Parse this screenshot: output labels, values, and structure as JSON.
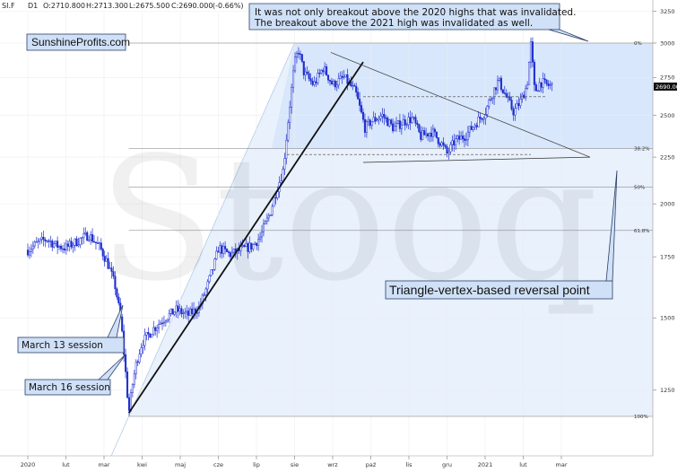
{
  "header": {
    "symbol": "SI.F",
    "interval": "D1",
    "open": "O:2710.800",
    "high": "H:2713.300",
    "low": "L:2675.500",
    "close": "C:2690.000",
    "change": "(-0.66%)"
  },
  "watermark": "Stooq",
  "brand": "SunshineProfits.com",
  "annotations": {
    "top_note_line1": "It was not only breakout above the 2020 highs that was invalidated.",
    "top_note_line2": "The breakout above the 2021 high was invalidated as well.",
    "march13": "March 13 session",
    "march16": "March 16 session",
    "reversal": "Triangle-vertex-based reversal point"
  },
  "current_price_label": "2690.00",
  "fib_levels": [
    {
      "label": "0%",
      "value": 3000
    },
    {
      "label": "38.2%",
      "value": 2300
    },
    {
      "label": "50%",
      "value": 2085
    },
    {
      "label": "61.8%",
      "value": 1870
    },
    {
      "label": "100%",
      "value": 1170
    }
  ],
  "colors": {
    "candle": "#1f2fd0",
    "trend": "#111111",
    "fan_fill": "#d6e8fb",
    "accent": "#2b6fd6"
  },
  "chart_data": {
    "type": "candlestick",
    "title": "",
    "y_scale": "log",
    "ylim": [
      1050,
      3300
    ],
    "y_ticks": [
      1250,
      1500,
      1750,
      2000,
      2250,
      2500,
      2750,
      3000,
      3250
    ],
    "x_ticks": [
      "2020",
      "lut",
      "mar",
      "kwi",
      "maj",
      "cze",
      "lip",
      "sie",
      "wrz",
      "paź",
      "lis",
      "gru",
      "2021",
      "lut",
      "mar"
    ],
    "x_tick_positions": [
      0,
      1,
      2,
      3,
      4,
      5,
      6,
      7,
      8,
      9,
      10,
      11,
      12,
      13,
      14
    ],
    "grid": true,
    "close_path": [
      [
        0.0,
        1780
      ],
      [
        0.25,
        1810
      ],
      [
        0.5,
        1830
      ],
      [
        0.75,
        1800
      ],
      [
        1.0,
        1790
      ],
      [
        1.3,
        1820
      ],
      [
        1.6,
        1850
      ],
      [
        1.9,
        1790
      ],
      [
        2.1,
        1720
      ],
      [
        2.3,
        1620
      ],
      [
        2.45,
        1480
      ],
      [
        2.55,
        1330
      ],
      [
        2.65,
        1180
      ],
      [
        2.75,
        1270
      ],
      [
        2.85,
        1340
      ],
      [
        3.0,
        1410
      ],
      [
        3.3,
        1460
      ],
      [
        3.6,
        1500
      ],
      [
        3.9,
        1530
      ],
      [
        4.2,
        1510
      ],
      [
        4.5,
        1540
      ],
      [
        4.7,
        1620
      ],
      [
        4.9,
        1720
      ],
      [
        5.0,
        1790
      ],
      [
        5.3,
        1760
      ],
      [
        5.6,
        1780
      ],
      [
        5.9,
        1800
      ],
      [
        6.1,
        1840
      ],
      [
        6.35,
        1950
      ],
      [
        6.5,
        2050
      ],
      [
        6.7,
        2180
      ],
      [
        6.8,
        2400
      ],
      [
        7.0,
        2850
      ],
      [
        7.1,
        2950
      ],
      [
        7.25,
        2780
      ],
      [
        7.5,
        2700
      ],
      [
        7.75,
        2820
      ],
      [
        8.0,
        2700
      ],
      [
        8.3,
        2750
      ],
      [
        8.6,
        2650
      ],
      [
        8.85,
        2420
      ],
      [
        9.0,
        2460
      ],
      [
        9.3,
        2500
      ],
      [
        9.6,
        2420
      ],
      [
        9.85,
        2460
      ],
      [
        10.1,
        2480
      ],
      [
        10.3,
        2370
      ],
      [
        10.6,
        2400
      ],
      [
        10.85,
        2330
      ],
      [
        11.0,
        2270
      ],
      [
        11.2,
        2340
      ],
      [
        11.5,
        2380
      ],
      [
        11.75,
        2450
      ],
      [
        12.0,
        2520
      ],
      [
        12.2,
        2650
      ],
      [
        12.35,
        2730
      ],
      [
        12.55,
        2620
      ],
      [
        12.75,
        2520
      ],
      [
        12.95,
        2600
      ],
      [
        13.1,
        2700
      ],
      [
        13.2,
        2990
      ],
      [
        13.3,
        2650
      ],
      [
        13.45,
        2720
      ],
      [
        13.6,
        2700
      ],
      [
        13.75,
        2690
      ]
    ],
    "lines": [
      {
        "name": "support",
        "from": [
          2.65,
          1180
        ],
        "to": [
          8.8,
          2860
        ]
      },
      {
        "name": "triangle-upper",
        "from": [
          7.95,
          2930
        ],
        "to": [
          14.75,
          2250
        ]
      },
      {
        "name": "triangle-lower",
        "from": [
          8.8,
          2220
        ],
        "to": [
          14.75,
          2250
        ]
      },
      {
        "name": "dashed-upper",
        "from": [
          8.8,
          2620
        ],
        "to": [
          13.6,
          2620
        ]
      },
      {
        "name": "dashed-lower",
        "from": [
          6.8,
          2265
        ],
        "to": [
          13.2,
          2265
        ]
      },
      {
        "name": "fan-ray",
        "from": [
          2.65,
          1180
        ],
        "to": [
          7.0,
          3000
        ]
      }
    ]
  }
}
